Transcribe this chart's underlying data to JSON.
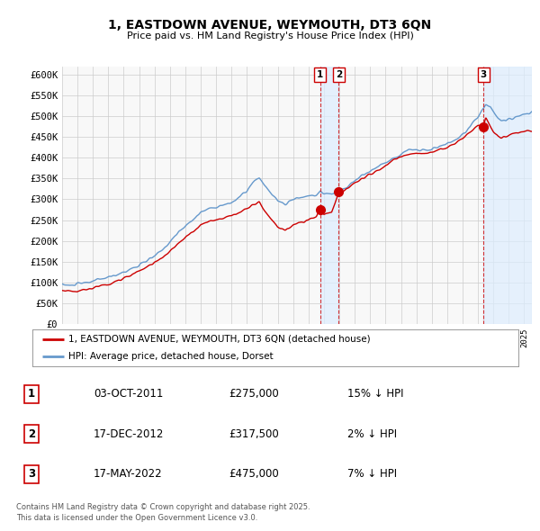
{
  "title": "1, EASTDOWN AVENUE, WEYMOUTH, DT3 6QN",
  "subtitle": "Price paid vs. HM Land Registry's House Price Index (HPI)",
  "ylim": [
    0,
    620000
  ],
  "yticks": [
    0,
    50000,
    100000,
    150000,
    200000,
    250000,
    300000,
    350000,
    400000,
    450000,
    500000,
    550000,
    600000
  ],
  "hpi_color": "#6699cc",
  "price_color": "#cc0000",
  "sale_marker_color": "#cc0000",
  "dashed_line_color": "#cc0000",
  "bg_color": "#ffffff",
  "chart_bg_color": "#f8f8f8",
  "grid_color": "#cccccc",
  "shade_color": "#ddeeff",
  "legend_entries": [
    "1, EASTDOWN AVENUE, WEYMOUTH, DT3 6QN (detached house)",
    "HPI: Average price, detached house, Dorset"
  ],
  "sales": [
    {
      "num": 1,
      "date_x": 2011.75,
      "price": 275000,
      "label": "03-OCT-2011",
      "price_str": "£275,000",
      "hpi_pct": "15% ↓ HPI"
    },
    {
      "num": 2,
      "date_x": 2012.96,
      "price": 317500,
      "label": "17-DEC-2012",
      "price_str": "£317,500",
      "hpi_pct": "2% ↓ HPI"
    },
    {
      "num": 3,
      "date_x": 2022.37,
      "price": 475000,
      "label": "17-MAY-2022",
      "price_str": "£475,000",
      "hpi_pct": "7% ↓ HPI"
    }
  ],
  "footer_lines": [
    "Contains HM Land Registry data © Crown copyright and database right 2025.",
    "This data is licensed under the Open Government Licence v3.0."
  ],
  "xmin": 1995.0,
  "xmax": 2025.5
}
